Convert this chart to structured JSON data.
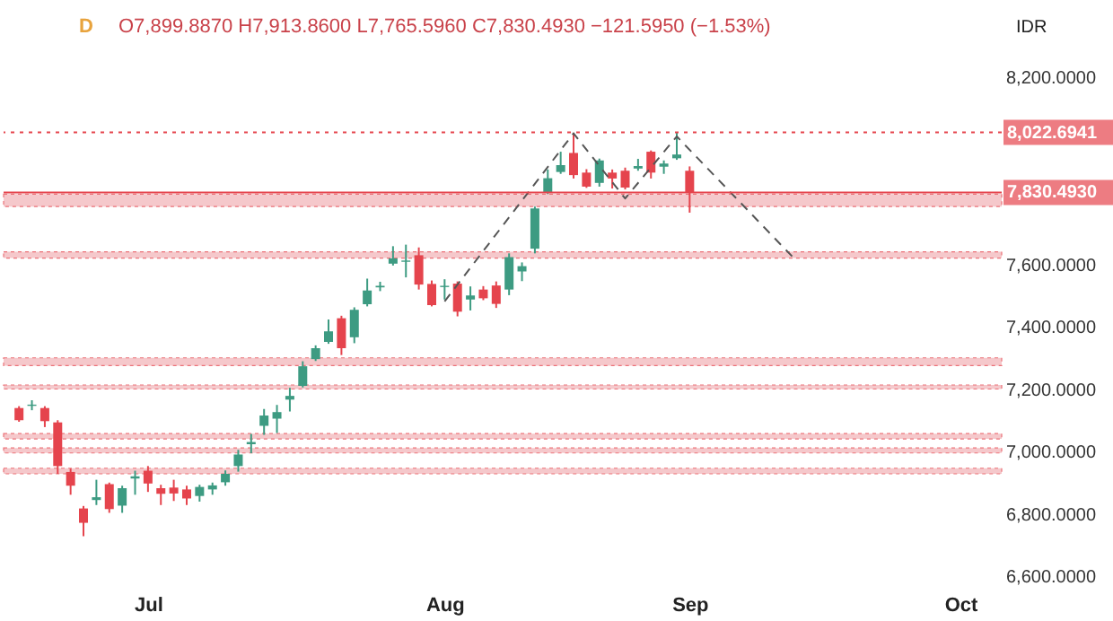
{
  "chart_data": {
    "type": "candlestick",
    "title": "O7,899.8870 H7,913.8600 L7,765.5960 C7,830.4930 −121.5950 (−1.53%)",
    "annotations": [
      "D",
      "IDR"
    ],
    "categories": [
      null,
      null,
      null,
      null,
      null,
      null,
      null,
      null,
      null,
      null,
      "Jul",
      null,
      null,
      null,
      null,
      null,
      null,
      null,
      null,
      null,
      null,
      null,
      null,
      null,
      null,
      null,
      null,
      null,
      null,
      null,
      null,
      null,
      null,
      "Aug",
      null,
      null,
      null,
      null,
      null,
      null,
      null,
      null,
      null,
      null,
      null,
      null,
      null,
      null,
      null,
      null,
      null,
      null,
      "Sep",
      null,
      null,
      null,
      null,
      null,
      null,
      null,
      null,
      null,
      null,
      null,
      null,
      null,
      null,
      null,
      null,
      null,
      null,
      null,
      null,
      "Oct",
      null,
      null
    ],
    "ohlc": [
      [
        7139,
        7145,
        7095,
        7100
      ],
      [
        7146,
        7164,
        7132,
        7150
      ],
      [
        7139,
        7145,
        7078,
        7097
      ],
      [
        7093,
        7100,
        6928,
        6953
      ],
      [
        6934,
        6945,
        6861,
        6890
      ],
      [
        6817,
        6825,
        6728,
        6771
      ],
      [
        6844,
        6909,
        6828,
        6853
      ],
      [
        6895,
        6900,
        6803,
        6815
      ],
      [
        6826,
        6890,
        6803,
        6882
      ],
      [
        6913,
        6938,
        6861,
        6920
      ],
      [
        6938,
        6953,
        6870,
        6897
      ],
      [
        6882,
        6893,
        6828,
        6864
      ],
      [
        6884,
        6909,
        6841,
        6865
      ],
      [
        6878,
        6890,
        6828,
        6849
      ],
      [
        6857,
        6893,
        6839,
        6886
      ],
      [
        6878,
        6900,
        6861,
        6891
      ],
      [
        6901,
        6939,
        6890,
        6928
      ],
      [
        6953,
        7005,
        6935,
        6990
      ],
      [
        7023,
        7056,
        6994,
        7030
      ],
      [
        7082,
        7136,
        7053,
        7115
      ],
      [
        7105,
        7149,
        7059,
        7126
      ],
      [
        7166,
        7204,
        7128,
        7178
      ],
      [
        7210,
        7289,
        7205,
        7273
      ],
      [
        7296,
        7340,
        7290,
        7331
      ],
      [
        7351,
        7423,
        7345,
        7385
      ],
      [
        7427,
        7435,
        7309,
        7331
      ],
      [
        7366,
        7462,
        7347,
        7454
      ],
      [
        7472,
        7554,
        7465,
        7516
      ],
      [
        7526,
        7544,
        7514,
        7531
      ],
      [
        7602,
        7658,
        7596,
        7619
      ],
      [
        7608,
        7663,
        7558,
        7612
      ],
      [
        7629,
        7654,
        7519,
        7535
      ],
      [
        7537,
        7548,
        7465,
        7469
      ],
      [
        7527,
        7552,
        7487,
        7531
      ],
      [
        7538,
        7545,
        7433,
        7448
      ],
      [
        7487,
        7529,
        7452,
        7500
      ],
      [
        7519,
        7530,
        7485,
        7491
      ],
      [
        7532,
        7545,
        7460,
        7473
      ],
      [
        7519,
        7635,
        7501,
        7623
      ],
      [
        7577,
        7606,
        7546,
        7594
      ],
      [
        7650,
        7785,
        7635,
        7779
      ],
      [
        7831,
        7904,
        7825,
        7876
      ],
      [
        7896,
        7961,
        7890,
        7918
      ],
      [
        7957,
        8022,
        7875,
        7886
      ],
      [
        7894,
        7905,
        7845,
        7849
      ],
      [
        7861,
        7939,
        7849,
        7933
      ],
      [
        7894,
        7904,
        7843,
        7875
      ],
      [
        7900,
        7910,
        7840,
        7846
      ],
      [
        7907,
        7938,
        7900,
        7915
      ],
      [
        7961,
        7965,
        7875,
        7894
      ],
      [
        7913,
        7933,
        7890,
        7923
      ],
      [
        7940,
        8022.6941,
        7935,
        7952
      ],
      [
        7899.887,
        7913.86,
        7765.596,
        7830.493
      ],
      null,
      null,
      null,
      null,
      null,
      null,
      null,
      null,
      null,
      null,
      null,
      null,
      null,
      null,
      null,
      null,
      null,
      null,
      null,
      null,
      null,
      null,
      null
    ],
    "colors": [
      "#e5444d",
      "#3d9b82",
      "#e5444d",
      "#e5444d",
      "#e5444d",
      "#e5444d",
      "#3d9b82",
      "#e5444d",
      "#3d9b82",
      "#3d9b82",
      "#e5444d",
      "#e5444d",
      "#e5444d",
      "#e5444d",
      "#3d9b82",
      "#3d9b82",
      "#3d9b82",
      "#3d9b82",
      "#3d9b82",
      "#3d9b82",
      "#3d9b82",
      "#3d9b82",
      "#3d9b82",
      "#3d9b82",
      "#3d9b82",
      "#e5444d",
      "#3d9b82",
      "#3d9b82",
      "#3d9b82",
      "#3d9b82",
      "#3d9b82",
      "#e5444d",
      "#e5444d",
      "#3d9b82",
      "#e5444d",
      "#3d9b82",
      "#e5444d",
      "#e5444d",
      "#3d9b82",
      "#3d9b82",
      "#3d9b82",
      "#3d9b82",
      "#3d9b82",
      "#e5444d",
      "#e5444d",
      "#3d9b82",
      "#e5444d",
      "#e5444d",
      "#3d9b82",
      "#e5444d",
      "#3d9b82",
      "#3d9b82",
      "#e5444d",
      null,
      null,
      null,
      null,
      null,
      null,
      null,
      null,
      null,
      null,
      null,
      null,
      null,
      null,
      null,
      null,
      null,
      null,
      null,
      null,
      null,
      null,
      null
    ],
    "series": [
      {
        "type": "line",
        "values": [
          null,
          null,
          null,
          null,
          null,
          null,
          null,
          null,
          null,
          null,
          null,
          null,
          null,
          null,
          null,
          null,
          null,
          null,
          null,
          null,
          null,
          null,
          null,
          null,
          null,
          null,
          null,
          null,
          null,
          null,
          null,
          null,
          null,
          7481,
          null,
          null,
          null,
          null,
          null,
          null,
          null,
          null,
          null,
          8020,
          null,
          null,
          null,
          7811,
          null,
          null,
          null,
          8010,
          null,
          null,
          null,
          null,
          null,
          null,
          null,
          null,
          7623,
          null,
          null,
          null,
          null,
          null,
          null,
          null,
          null,
          null,
          null,
          null,
          null,
          null,
          null,
          null
        ],
        "color": "#555555",
        "line_style": "dashed"
      }
    ],
    "ylim": [
      6600,
      8200
    ],
    "yticks": [
      {
        "value": 6600,
        "label": "6,600.0000"
      },
      {
        "value": 6800,
        "label": "6,800.0000"
      },
      {
        "value": 7000,
        "label": "7,000.0000"
      },
      {
        "value": 7200,
        "label": "7,200.0000"
      },
      {
        "value": 7400,
        "label": "7,400.0000"
      },
      {
        "value": 7600,
        "label": "7,600.0000"
      },
      {
        "value": 8200,
        "label": "8,200.0000"
      }
    ],
    "ref_lines": [
      {
        "axis": "y",
        "value": 8022.6941,
        "label": "8,022.6941",
        "color": "#e5444d",
        "line_style": "dotted"
      },
      {
        "axis": "y",
        "value": 7830.493,
        "label": "7,830.4930",
        "color": "#e5444d",
        "line_style": "solid"
      }
    ],
    "bands": [
      {
        "axis": "y",
        "from": 7785,
        "to": 7825,
        "color": "#f2b6ba"
      },
      {
        "axis": "y",
        "from": 7620,
        "to": 7640,
        "color": "#f2b6ba"
      },
      {
        "axis": "y",
        "from": 7275,
        "to": 7300,
        "color": "#f2b6ba"
      },
      {
        "axis": "y",
        "from": 7200,
        "to": 7213,
        "color": "#f2b6ba"
      },
      {
        "axis": "y",
        "from": 7040,
        "to": 7057,
        "color": "#f2b6ba"
      },
      {
        "axis": "y",
        "from": 6995,
        "to": 7011,
        "color": "#f2b6ba"
      },
      {
        "axis": "y",
        "from": 6928,
        "to": 6946,
        "color": "#f2b6ba"
      }
    ],
    "grid": false
  }
}
